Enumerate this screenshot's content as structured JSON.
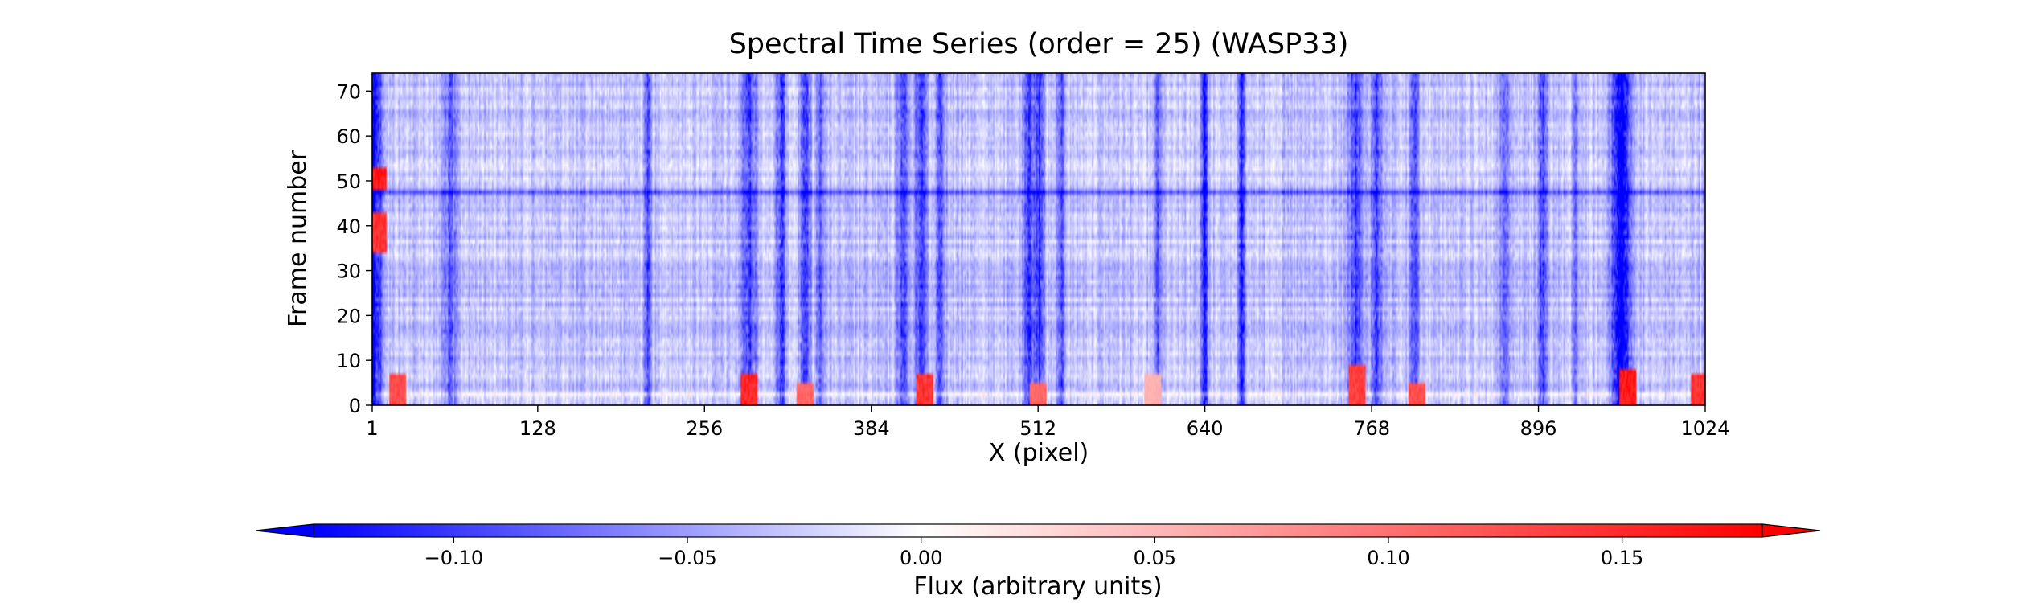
{
  "chart_data": {
    "type": "heatmap",
    "title": "Spectral Time Series (order = 25) (WASP33)",
    "xlabel": "X (pixel)",
    "ylabel": "Frame number",
    "xlim": [
      1,
      1024
    ],
    "ylim": [
      0,
      74
    ],
    "xticks": [
      "1",
      "128",
      "256",
      "384",
      "512",
      "640",
      "768",
      "896",
      "1024"
    ],
    "xtick_values": [
      1,
      128,
      256,
      384,
      512,
      640,
      768,
      896,
      1024
    ],
    "yticks": [
      "0",
      "10",
      "20",
      "30",
      "40",
      "50",
      "60",
      "70"
    ],
    "ytick_values": [
      0,
      10,
      20,
      30,
      40,
      50,
      60,
      70
    ],
    "colormap": "bwr",
    "colors": {
      "negative": "#0000ff",
      "zero": "#ffffff",
      "positive": "#ff0000"
    },
    "color_range": [
      -0.13,
      0.18
    ],
    "colorbar": {
      "label": "Flux (arbitrary units)",
      "orientation": "horizontal",
      "placement": "bottom",
      "extend": "both",
      "ticks": [
        "−0.10",
        "−0.05",
        "0.00",
        "0.05",
        "0.10",
        "0.15"
      ],
      "tick_values": [
        -0.1,
        -0.05,
        0.0,
        0.05,
        0.1,
        0.15
      ]
    },
    "grid": false,
    "n_columns": 1024,
    "n_frames": 74,
    "column_features": [
      {
        "x": 1,
        "width": 10,
        "value": -0.12
      },
      {
        "x": 60,
        "width": 8,
        "value": -0.05
      },
      {
        "x": 212,
        "width": 4,
        "value": -0.06
      },
      {
        "x": 290,
        "width": 9,
        "value": -0.07
      },
      {
        "x": 315,
        "width": 5,
        "value": -0.07
      },
      {
        "x": 333,
        "width": 5,
        "value": -0.08
      },
      {
        "x": 345,
        "width": 4,
        "value": -0.06
      },
      {
        "x": 408,
        "width": 6,
        "value": -0.07
      },
      {
        "x": 422,
        "width": 6,
        "value": -0.08
      },
      {
        "x": 437,
        "width": 5,
        "value": -0.07
      },
      {
        "x": 505,
        "width": 6,
        "value": -0.07
      },
      {
        "x": 513,
        "width": 5,
        "value": -0.08
      },
      {
        "x": 530,
        "width": 4,
        "value": -0.06
      },
      {
        "x": 604,
        "width": 4,
        "value": -0.06
      },
      {
        "x": 640,
        "width": 3,
        "value": -0.1
      },
      {
        "x": 668,
        "width": 3,
        "value": -0.1
      },
      {
        "x": 756,
        "width": 8,
        "value": -0.07
      },
      {
        "x": 772,
        "width": 5,
        "value": -0.08
      },
      {
        "x": 801,
        "width": 4,
        "value": -0.07
      },
      {
        "x": 870,
        "width": 4,
        "value": -0.06
      },
      {
        "x": 900,
        "width": 5,
        "value": -0.08
      },
      {
        "x": 925,
        "width": 3,
        "value": -0.05
      },
      {
        "x": 960,
        "width": 10,
        "value": -0.13
      }
    ],
    "frame_features": [
      {
        "frame": 2,
        "value": 0.02
      },
      {
        "frame": 24,
        "value": -0.01
      },
      {
        "frame": 36,
        "value": 0.01
      },
      {
        "frame": 47,
        "value": -0.05
      },
      {
        "frame": 66,
        "value": 0.01
      }
    ],
    "hot_spots": [
      {
        "x": 5,
        "frames": [
          34,
          42
        ],
        "value": 0.16
      },
      {
        "x": 5,
        "frames": [
          48,
          52
        ],
        "value": 0.18
      },
      {
        "x": 20,
        "frames": [
          0,
          6
        ],
        "value": 0.14
      },
      {
        "x": 290,
        "frames": [
          0,
          6
        ],
        "value": 0.17
      },
      {
        "x": 333,
        "frames": [
          0,
          4
        ],
        "value": 0.12
      },
      {
        "x": 425,
        "frames": [
          0,
          6
        ],
        "value": 0.16
      },
      {
        "x": 512,
        "frames": [
          0,
          4
        ],
        "value": 0.12
      },
      {
        "x": 600,
        "frames": [
          0,
          6
        ],
        "value": 0.06
      },
      {
        "x": 757,
        "frames": [
          0,
          8
        ],
        "value": 0.15
      },
      {
        "x": 803,
        "frames": [
          0,
          4
        ],
        "value": 0.14
      },
      {
        "x": 965,
        "frames": [
          0,
          7
        ],
        "value": 0.18
      },
      {
        "x": 1020,
        "frames": [
          0,
          6
        ],
        "value": 0.16
      }
    ]
  }
}
